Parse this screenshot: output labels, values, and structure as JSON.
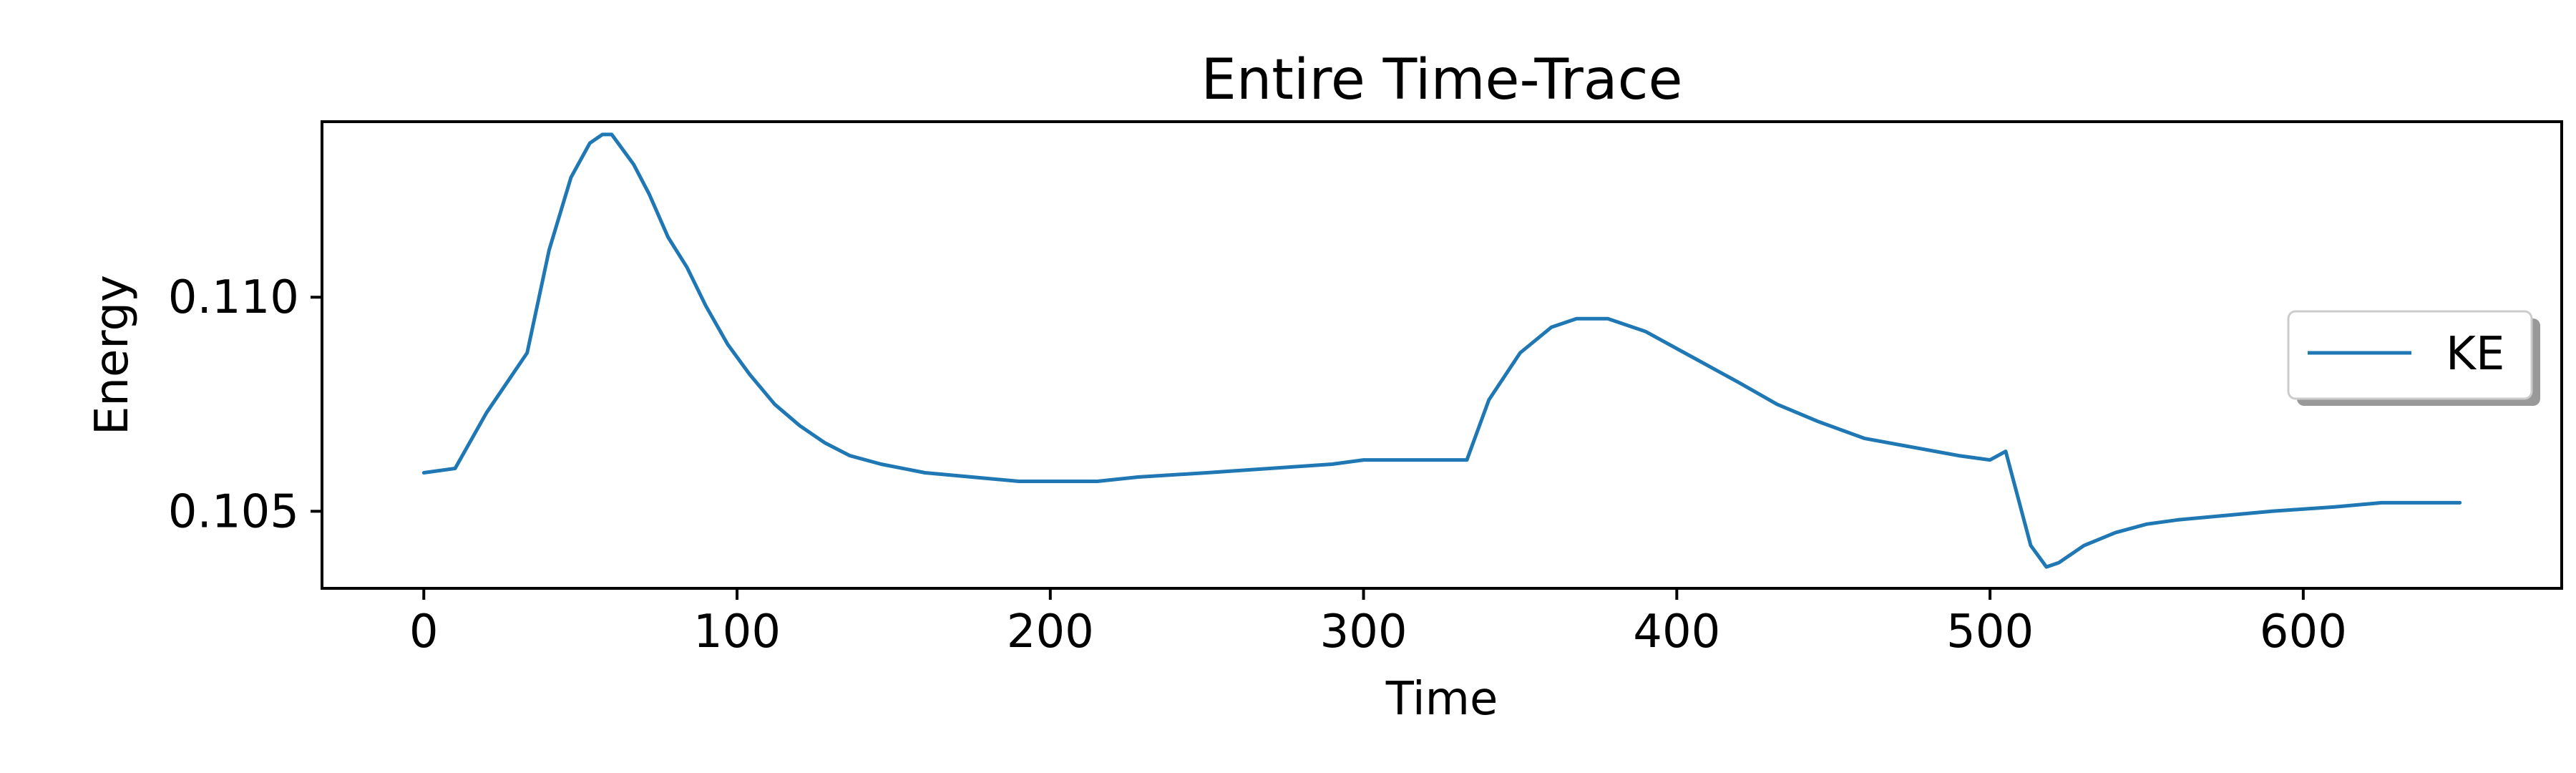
{
  "chart_data": {
    "type": "line",
    "title": "Entire Time-Trace",
    "xlabel": "Time",
    "ylabel": "Energy",
    "xlim": [
      -32.5,
      682.5
    ],
    "ylim": [
      0.1032,
      0.1141
    ],
    "xticks": [
      0,
      100,
      200,
      300,
      400,
      500,
      600
    ],
    "xtick_labels": [
      "0",
      "100",
      "200",
      "300",
      "400",
      "500",
      "600"
    ],
    "yticks": [
      0.105,
      0.11
    ],
    "ytick_labels": [
      "0.105",
      "0.110"
    ],
    "grid": false,
    "legend_position": "center-right",
    "series": [
      {
        "name": "KE",
        "color": "#1f77b4",
        "x": [
          0,
          10,
          20,
          33,
          40,
          47,
          53,
          57,
          60,
          63,
          67,
          72,
          78,
          84,
          90,
          97,
          104,
          112,
          120,
          128,
          136,
          146,
          160,
          175,
          190,
          215,
          228,
          250,
          270,
          290,
          300,
          313,
          320,
          333,
          333,
          340,
          350,
          360,
          368,
          378,
          390,
          405,
          420,
          432,
          445,
          460,
          475,
          490,
          500,
          505,
          513,
          518,
          522,
          530,
          540,
          550,
          560,
          575,
          590,
          610,
          625,
          640,
          650
        ],
        "y": [
          0.1059,
          0.106,
          0.1073,
          0.1087,
          0.1111,
          0.1128,
          0.1136,
          0.1138,
          0.1138,
          0.1135,
          0.1131,
          0.1124,
          0.1114,
          0.1107,
          0.1098,
          0.1089,
          0.1082,
          0.1075,
          0.107,
          0.1066,
          0.1063,
          0.1061,
          0.1059,
          0.1058,
          0.1057,
          0.1057,
          0.1058,
          0.1059,
          0.106,
          0.1061,
          0.1062,
          0.1062,
          0.1062,
          0.1062,
          0.1062,
          0.1076,
          0.1087,
          0.1093,
          0.1095,
          0.1095,
          0.1092,
          0.1086,
          0.108,
          0.1075,
          0.1071,
          0.1067,
          0.1065,
          0.1063,
          0.1062,
          0.1064,
          0.1042,
          0.1037,
          0.1038,
          0.1042,
          0.1045,
          0.1047,
          0.1048,
          0.1049,
          0.105,
          0.1051,
          0.1052,
          0.1052,
          0.1052
        ]
      }
    ]
  }
}
